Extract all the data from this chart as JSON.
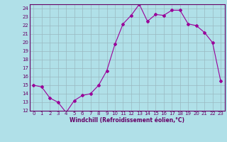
{
  "x": [
    0,
    1,
    2,
    3,
    4,
    5,
    6,
    7,
    8,
    9,
    10,
    11,
    12,
    13,
    14,
    15,
    16,
    17,
    18,
    19,
    20,
    21,
    22,
    23
  ],
  "y": [
    15,
    14.8,
    13.5,
    13.0,
    11.8,
    13.2,
    13.8,
    14.0,
    15.0,
    16.7,
    19.8,
    22.2,
    23.2,
    24.5,
    22.5,
    23.3,
    23.2,
    23.8,
    23.8,
    22.2,
    22.0,
    21.2,
    20.0,
    15.5
  ],
  "line_color": "#990099",
  "marker": "D",
  "marker_size": 2,
  "bg_color": "#b0e0e8",
  "grid_color": "#9ab8c0",
  "xlabel": "Windchill (Refroidissement éolien,°C)",
  "ylim": [
    12,
    24.5
  ],
  "xlim": [
    -0.5,
    23.5
  ],
  "yticks": [
    12,
    13,
    14,
    15,
    16,
    17,
    18,
    19,
    20,
    21,
    22,
    23,
    24
  ],
  "xticks": [
    0,
    1,
    2,
    3,
    4,
    5,
    6,
    7,
    8,
    9,
    10,
    11,
    12,
    13,
    14,
    15,
    16,
    17,
    18,
    19,
    20,
    21,
    22,
    23
  ],
  "font_color": "#660066",
  "tick_fontsize": 5.0,
  "xlabel_fontsize": 5.5
}
